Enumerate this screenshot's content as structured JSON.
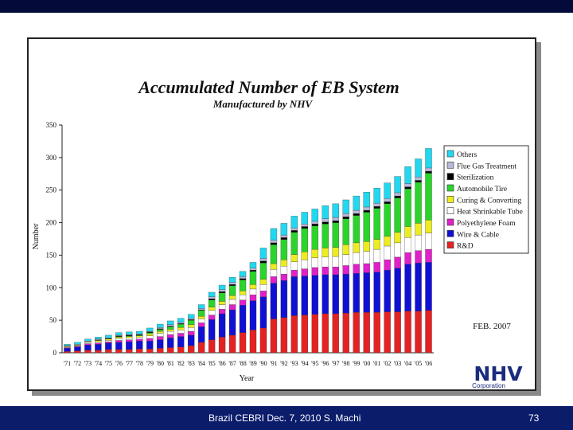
{
  "slide": {
    "footer_text": "Brazil CEBRI Dec. 7, 2010  S. Machi",
    "page_number": "73",
    "colors": {
      "top_bar": "#040a3a",
      "bottom_bar": "#0b1c6b"
    }
  },
  "chart_data": {
    "type": "bar",
    "stacked": true,
    "title": "Accumulated Number of EB System",
    "subtitle": "Manufactured by NHV",
    "xlabel": "Year",
    "ylabel": "Number",
    "ylim": [
      0,
      350
    ],
    "yticks": [
      0,
      50,
      100,
      150,
      200,
      250,
      300,
      350
    ],
    "annotation": "FEB. 2007",
    "logo_text": "NHV",
    "logo_subtext": "Corporation",
    "legend_position": "right",
    "categories": [
      "'71",
      "'72",
      "'73",
      "'74",
      "'75",
      "'76",
      "'77",
      "'78",
      "'79",
      "'80",
      "'81",
      "'82",
      "'83",
      "'84",
      "'85",
      "'86",
      "'87",
      "'88",
      "'89",
      "'90",
      "'91",
      "'92",
      "'93",
      "'94",
      "'95",
      "'96",
      "'97",
      "'98",
      "'99",
      "'00",
      "'01",
      "'02",
      "'03",
      "'04",
      "'05",
      "'06"
    ],
    "series": [
      {
        "name": "R&D",
        "color": "#e52222",
        "values": [
          2,
          3,
          4,
          4,
          5,
          5,
          5,
          6,
          6,
          7,
          8,
          9,
          11,
          16,
          20,
          24,
          27,
          31,
          35,
          38,
          52,
          54,
          57,
          58,
          59,
          60,
          60,
          61,
          62,
          62,
          62,
          63,
          63,
          64,
          64,
          65
        ]
      },
      {
        "name": "Wire & Cable",
        "color": "#1010d4",
        "values": [
          5,
          6,
          8,
          9,
          10,
          11,
          12,
          12,
          12,
          13,
          15,
          16,
          16,
          24,
          31,
          36,
          39,
          42,
          45,
          48,
          55,
          57,
          60,
          60,
          60,
          60,
          60,
          60,
          60,
          61,
          62,
          64,
          67,
          72,
          74,
          74
        ]
      },
      {
        "name": "Polyethylene Foam",
        "color": "#e020c8",
        "values": [
          1,
          1,
          2,
          2,
          2,
          3,
          3,
          3,
          4,
          5,
          5,
          5,
          6,
          6,
          7,
          7,
          8,
          8,
          9,
          9,
          10,
          10,
          10,
          11,
          12,
          12,
          12,
          13,
          14,
          14,
          15,
          16,
          17,
          18,
          19,
          20
        ]
      },
      {
        "name": "Heat Shrinkable Tube",
        "color": "#ffffff",
        "values": [
          1,
          1,
          2,
          2,
          2,
          3,
          3,
          3,
          4,
          5,
          5,
          5,
          6,
          6,
          7,
          7,
          8,
          8,
          9,
          10,
          11,
          12,
          13,
          14,
          15,
          15,
          16,
          17,
          18,
          19,
          20,
          21,
          22,
          23,
          24,
          25
        ]
      },
      {
        "name": "Curing & Converting",
        "color": "#ecec20",
        "values": [
          1,
          1,
          1,
          2,
          2,
          2,
          2,
          2,
          3,
          3,
          3,
          4,
          4,
          4,
          5,
          5,
          6,
          6,
          7,
          8,
          9,
          10,
          11,
          12,
          13,
          14,
          14,
          15,
          15,
          15,
          15,
          15,
          16,
          17,
          18,
          20
        ]
      },
      {
        "name": "Automobile Tire",
        "color": "#2bd42b",
        "values": [
          0,
          0,
          0,
          0,
          0,
          1,
          1,
          1,
          2,
          3,
          4,
          5,
          7,
          9,
          11,
          13,
          15,
          17,
          20,
          25,
          29,
          31,
          34,
          36,
          36,
          37,
          38,
          40,
          42,
          45,
          48,
          50,
          53,
          58,
          63,
          72
        ]
      },
      {
        "name": "Sterilization",
        "color": "#000000",
        "values": [
          0,
          0,
          0,
          1,
          1,
          1,
          1,
          1,
          1,
          1,
          1,
          1,
          1,
          1,
          2,
          2,
          2,
          2,
          2,
          3,
          3,
          3,
          3,
          3,
          3,
          3,
          3,
          3,
          3,
          3,
          3,
          3,
          3,
          3,
          3,
          3
        ]
      },
      {
        "name": "Flue Gas Treatment",
        "color": "#b8b8d8",
        "values": [
          1,
          1,
          1,
          1,
          1,
          1,
          1,
          1,
          1,
          2,
          2,
          2,
          2,
          2,
          3,
          3,
          3,
          3,
          3,
          4,
          4,
          4,
          4,
          4,
          4,
          5,
          5,
          5,
          5,
          5,
          5,
          5,
          5,
          5,
          5,
          5
        ]
      },
      {
        "name": "Others",
        "color": "#22d8f0",
        "values": [
          2,
          3,
          3,
          3,
          4,
          4,
          4,
          4,
          5,
          5,
          6,
          6,
          6,
          6,
          7,
          7,
          8,
          8,
          9,
          16,
          18,
          18,
          18,
          18,
          19,
          20,
          21,
          21,
          22,
          23,
          23,
          24,
          25,
          26,
          28,
          30
        ]
      }
    ]
  }
}
